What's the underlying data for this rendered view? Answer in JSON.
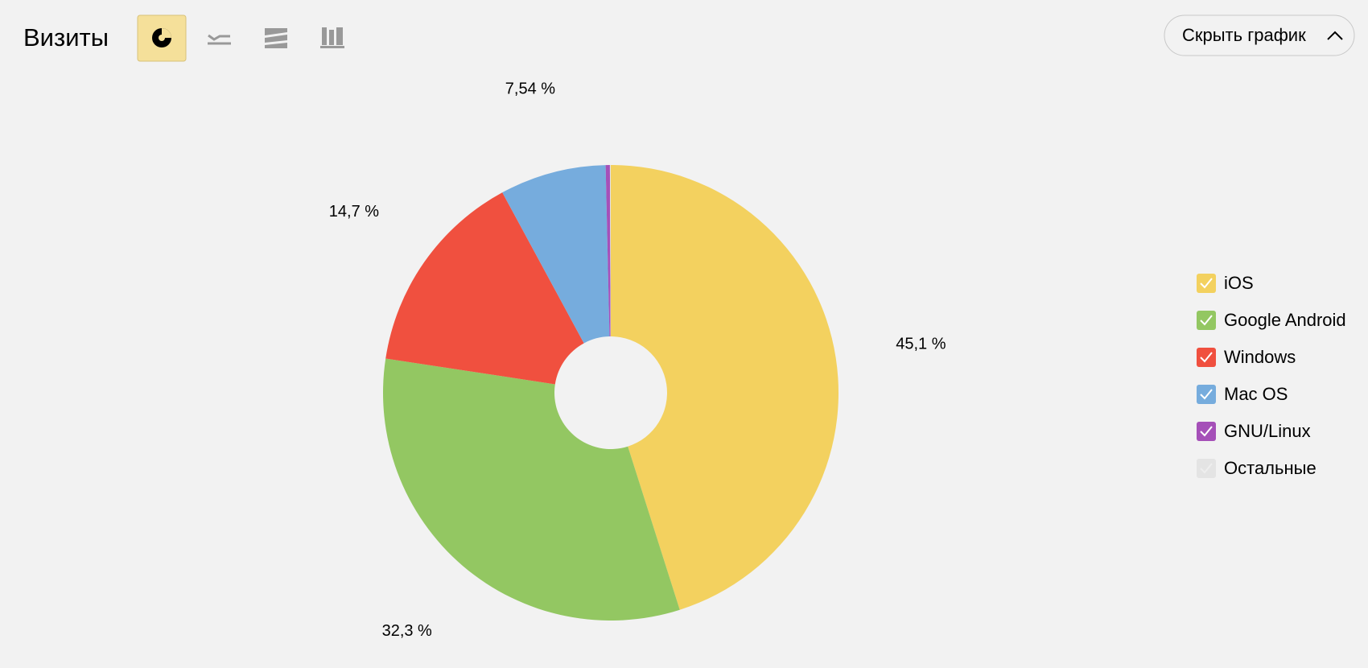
{
  "header": {
    "title": "Визиты",
    "button": "Скрыть график"
  },
  "chart_data": {
    "type": "pie",
    "categories": [
      "iOS",
      "Google Android",
      "Windows",
      "Mac OS",
      "GNU/Linux",
      "Остальные"
    ],
    "values": [
      45.1,
      32.3,
      14.7,
      7.54,
      0.3,
      0.06
    ],
    "value_labels": [
      "45,1 %",
      "32,3 %",
      "14,7 %",
      "7,54 %",
      null,
      null
    ],
    "colors": [
      "#f3d15f",
      "#93c762",
      "#f0503f",
      "#76acdd",
      "#a550b8",
      "#e4e4e4"
    ]
  }
}
